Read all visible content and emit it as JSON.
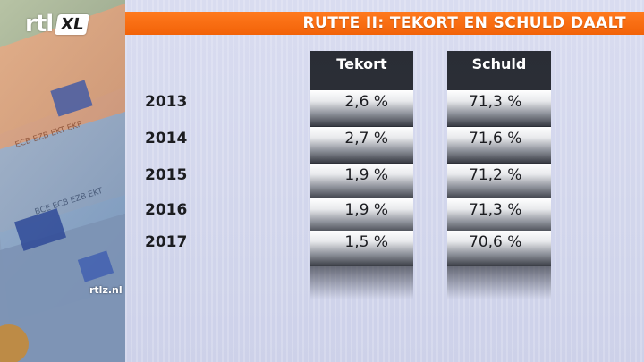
{
  "logo": {
    "brand": "rtl",
    "suffix": "XL"
  },
  "title": "RUTTE II: TEKORT EN SCHULD DAALT",
  "columns": {
    "tekort": "Tekort",
    "schuld": "Schuld"
  },
  "rows": [
    {
      "year": "2013",
      "tekort": "2,6 %",
      "schuld": "71,3 %"
    },
    {
      "year": "2014",
      "tekort": "2,7 %",
      "schuld": "71,6 %"
    },
    {
      "year": "2015",
      "tekort": "1,9 %",
      "schuld": "71,2 %"
    },
    {
      "year": "2016",
      "tekort": "1,9 %",
      "schuld": "71,3 %"
    },
    {
      "year": "2017",
      "tekort": "1,5 %",
      "schuld": "70,6 %"
    }
  ],
  "watermark": "rtlz.nl",
  "colors": {
    "banner": "#f26208",
    "column": "#2a2d35",
    "panel": "#d6d9ee"
  }
}
